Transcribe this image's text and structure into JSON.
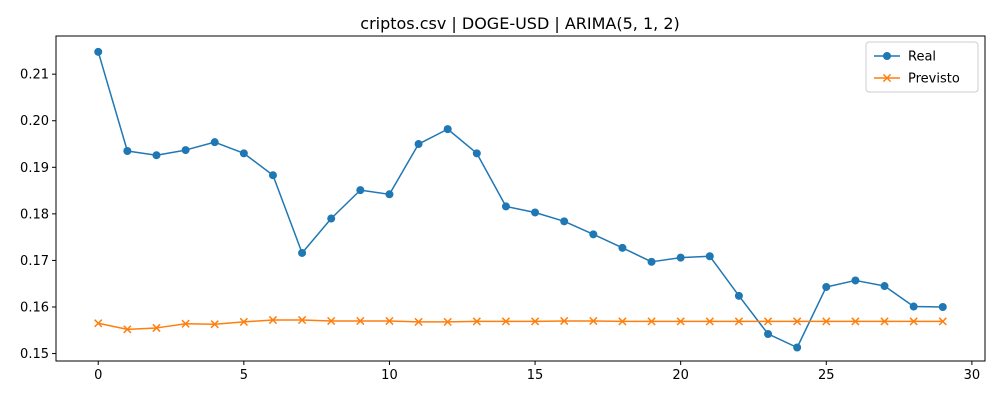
{
  "chart_data": {
    "type": "line",
    "title": "criptos.csv | DOGE-USD | ARIMA(5, 1, 2)",
    "xlabel": "",
    "ylabel": "",
    "xlim": [
      -1.45,
      30.45
    ],
    "ylim": [
      0.1484,
      0.2182
    ],
    "xticks": [
      0,
      5,
      10,
      15,
      20,
      25,
      30
    ],
    "yticks": [
      0.15,
      0.16,
      0.17,
      0.18,
      0.19,
      0.2,
      0.21
    ],
    "xtick_labels": [
      "0",
      "5",
      "10",
      "15",
      "20",
      "25",
      "30"
    ],
    "ytick_labels": [
      "0.15",
      "0.16",
      "0.17",
      "0.18",
      "0.19",
      "0.20",
      "0.21"
    ],
    "grid": false,
    "legend_position": "top-right",
    "x": [
      0,
      1,
      2,
      3,
      4,
      5,
      6,
      7,
      8,
      9,
      10,
      11,
      12,
      13,
      14,
      15,
      16,
      17,
      18,
      19,
      20,
      21,
      22,
      23,
      24,
      25,
      26,
      27,
      28,
      29
    ],
    "series": [
      {
        "name": "Real",
        "color": "#1f77b4",
        "marker": "circle",
        "values": [
          0.2148,
          0.1935,
          0.1926,
          0.1937,
          0.1954,
          0.193,
          0.1883,
          0.1716,
          0.179,
          0.1851,
          0.1842,
          0.195,
          0.1982,
          0.193,
          0.1816,
          0.1803,
          0.1784,
          0.1756,
          0.1727,
          0.1697,
          0.1706,
          0.1709,
          0.1624,
          0.1542,
          0.1513,
          0.1643,
          0.1657,
          0.1645,
          0.1601,
          0.16
        ]
      },
      {
        "name": "Previsto",
        "color": "#ff7f0e",
        "marker": "x",
        "values": [
          0.1565,
          0.1552,
          0.1555,
          0.1564,
          0.1563,
          0.1568,
          0.1572,
          0.1572,
          0.157,
          0.157,
          0.157,
          0.1568,
          0.1568,
          0.1569,
          0.1569,
          0.1569,
          0.157,
          0.157,
          0.1569,
          0.1569,
          0.1569,
          0.1569,
          0.1569,
          0.1569,
          0.1569,
          0.1569,
          0.1569,
          0.1569,
          0.1569,
          0.1569
        ]
      }
    ]
  }
}
